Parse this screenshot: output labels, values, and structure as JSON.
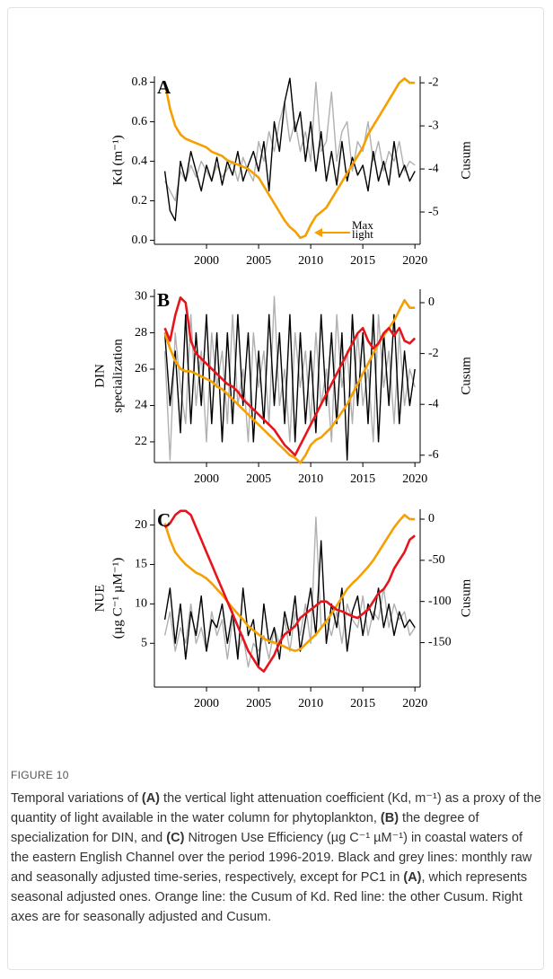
{
  "figure_label": "FIGURE 10",
  "caption": [
    {
      "text": "Temporal variations of "
    },
    {
      "text": "(A)",
      "bold": true
    },
    {
      "text": " the vertical light attenuation coefficient (Kd, m⁻¹) as a proxy of the quantity of light available in the water column for phytoplankton, "
    },
    {
      "text": "(B)",
      "bold": true
    },
    {
      "text": " the degree of specialization for DIN, and "
    },
    {
      "text": "(C)",
      "bold": true
    },
    {
      "text": " Nitrogen Use Efficiency (µg C⁻¹ µM⁻¹) in coastal waters of the eastern English Channel over the period 1996-2019. Black and grey lines: monthly raw and seasonally adjusted time-series, respectively, except for PC1 in "
    },
    {
      "text": "(A)",
      "bold": true
    },
    {
      "text": ", which represents seasonal adjusted ones. Orange line: the Cusum of Kd. Red line: the other Cusum. Right axes are for seasonally adjusted and Cusum."
    }
  ],
  "chart_data": [
    {
      "type": "line",
      "label": "A",
      "ylabel": [
        "Kd (m⁻¹)"
      ],
      "y2label": "Cusum",
      "annotation": [
        "Max",
        "light"
      ],
      "x": [
        1996,
        1996.5,
        1997,
        1997.5,
        1998,
        1998.5,
        1999,
        1999.5,
        2000,
        2000.5,
        2001,
        2001.5,
        2002,
        2002.5,
        2003,
        2003.5,
        2004,
        2004.5,
        2005,
        2005.5,
        2006,
        2006.5,
        2007,
        2007.5,
        2008,
        2008.5,
        2009,
        2009.5,
        2010,
        2010.5,
        2011,
        2011.5,
        2012,
        2012.5,
        2013,
        2013.5,
        2014,
        2014.5,
        2015,
        2015.5,
        2016,
        2016.5,
        2017,
        2017.5,
        2018,
        2018.5,
        2019,
        2019.5,
        2020
      ],
      "xlim": [
        1995,
        2020.5
      ],
      "xticks": [
        2000,
        2005,
        2010,
        2015,
        2020
      ],
      "ylim": [
        -0.02,
        0.83
      ],
      "yticks": [
        {
          "value": 0,
          "label": "0.0"
        },
        0.2,
        0.4,
        0.6,
        0.8
      ],
      "y2lim": [
        -5.75,
        -1.85
      ],
      "y2ticks": [
        -2,
        -3,
        -4,
        -5
      ],
      "series": [
        {
          "color": "#b0b0b0",
          "values": [
            0.3,
            0.25,
            0.2,
            0.35,
            0.3,
            0.38,
            0.32,
            0.4,
            0.35,
            0.3,
            0.38,
            0.32,
            0.36,
            0.4,
            0.3,
            0.42,
            0.35,
            0.3,
            0.5,
            0.4,
            0.55,
            0.45,
            0.6,
            0.7,
            0.5,
            0.6,
            0.45,
            0.55,
            0.4,
            0.8,
            0.45,
            0.5,
            0.75,
            0.4,
            0.55,
            0.6,
            0.35,
            0.5,
            0.45,
            0.6,
            0.4,
            0.5,
            0.35,
            0.45,
            0.4,
            0.5,
            0.35,
            0.4,
            0.38
          ]
        },
        {
          "color": "#000000",
          "values": [
            0.35,
            0.15,
            0.1,
            0.4,
            0.3,
            0.45,
            0.35,
            0.25,
            0.38,
            0.3,
            0.42,
            0.28,
            0.4,
            0.33,
            0.45,
            0.3,
            0.38,
            0.45,
            0.35,
            0.5,
            0.25,
            0.6,
            0.45,
            0.7,
            0.82,
            0.55,
            0.65,
            0.4,
            0.6,
            0.35,
            0.55,
            0.3,
            0.45,
            0.28,
            0.5,
            0.3,
            0.42,
            0.33,
            0.38,
            0.25,
            0.45,
            0.3,
            0.4,
            0.28,
            0.5,
            0.32,
            0.38,
            0.3,
            0.35
          ]
        },
        {
          "color": "#f5a000",
          "axis": "y2",
          "values": [
            -2.0,
            -2.6,
            -3.0,
            -3.2,
            -3.3,
            -3.35,
            -3.4,
            -3.45,
            -3.5,
            -3.6,
            -3.65,
            -3.7,
            -3.8,
            -3.85,
            -3.9,
            -3.95,
            -4.0,
            -4.1,
            -4.2,
            -4.4,
            -4.6,
            -4.8,
            -5.0,
            -5.2,
            -5.35,
            -5.45,
            -5.6,
            -5.55,
            -5.3,
            -5.1,
            -5.0,
            -4.9,
            -4.7,
            -4.5,
            -4.3,
            -4.1,
            -3.9,
            -3.7,
            -3.5,
            -3.2,
            -3.0,
            -2.8,
            -2.6,
            -2.4,
            -2.2,
            -2.0,
            -1.9,
            -2.0,
            -2.0
          ]
        }
      ]
    },
    {
      "type": "line",
      "label": "B",
      "ylabel": [
        "DIN",
        "specialization"
      ],
      "y2label": "Cusum",
      "x": [
        1996,
        1996.5,
        1997,
        1997.5,
        1998,
        1998.5,
        1999,
        1999.5,
        2000,
        2000.5,
        2001,
        2001.5,
        2002,
        2002.5,
        2003,
        2003.5,
        2004,
        2004.5,
        2005,
        2005.5,
        2006,
        2006.5,
        2007,
        2007.5,
        2008,
        2008.5,
        2009,
        2009.5,
        2010,
        2010.5,
        2011,
        2011.5,
        2012,
        2012.5,
        2013,
        2013.5,
        2014,
        2014.5,
        2015,
        2015.5,
        2016,
        2016.5,
        2017,
        2017.5,
        2018,
        2018.5,
        2019,
        2019.5,
        2020
      ],
      "xlim": [
        1995,
        2020.5
      ],
      "xticks": [
        2000,
        2005,
        2010,
        2015,
        2020
      ],
      "ylim": [
        20.86,
        30.4
      ],
      "yticks": [
        22,
        24,
        26,
        28,
        30
      ],
      "y2lim": [
        -6.29,
        0.53
      ],
      "y2ticks": [
        0,
        -2,
        -4,
        -6
      ],
      "series": [
        {
          "color": "#b0b0b0",
          "values": [
            27,
            21,
            28,
            25,
            23,
            29,
            24,
            27,
            22,
            28,
            25,
            27,
            23,
            29,
            24,
            26,
            22,
            28,
            25,
            27,
            23,
            30,
            24,
            26,
            22,
            28,
            25,
            27,
            23,
            28,
            24,
            26,
            22,
            29,
            25,
            27,
            23,
            28,
            24,
            26,
            22,
            29,
            25,
            27,
            23,
            28,
            24,
            26,
            25
          ]
        },
        {
          "color": "#000000",
          "values": [
            28,
            24,
            27,
            22.5,
            29,
            23,
            28,
            24,
            29,
            23,
            28,
            22,
            28,
            23,
            29,
            24,
            28,
            22,
            27,
            23,
            29,
            24,
            28,
            23,
            29,
            22,
            28,
            23,
            27,
            22.5,
            29,
            24,
            28,
            23,
            28,
            21,
            29,
            24,
            28,
            23,
            29,
            22,
            28,
            24,
            29,
            23,
            27,
            24,
            26
          ]
        },
        {
          "color": "#f5a000",
          "axis": "y2",
          "values": [
            -1.2,
            -1.8,
            -2.3,
            -2.6,
            -2.7,
            -2.7,
            -2.8,
            -2.9,
            -3.0,
            -3.1,
            -3.3,
            -3.4,
            -3.6,
            -3.8,
            -4.0,
            -4.2,
            -4.4,
            -4.6,
            -4.8,
            -5.0,
            -5.2,
            -5.4,
            -5.6,
            -5.8,
            -6.0,
            -6.1,
            -6.3,
            -6.0,
            -5.6,
            -5.4,
            -5.3,
            -5.1,
            -4.9,
            -4.6,
            -4.3,
            -4.0,
            -3.6,
            -3.2,
            -2.8,
            -2.4,
            -2.0,
            -1.6,
            -1.3,
            -1.0,
            -0.7,
            -0.3,
            0.1,
            -0.2,
            -0.2
          ]
        },
        {
          "color": "#e8141c",
          "axis": "y2",
          "values": [
            -1.0,
            -1.5,
            -0.5,
            0.2,
            0.0,
            -1.5,
            -2.0,
            -2.2,
            -2.4,
            -2.6,
            -2.8,
            -3.0,
            -3.2,
            -3.3,
            -3.5,
            -3.8,
            -4.0,
            -4.2,
            -4.4,
            -4.6,
            -4.8,
            -5.0,
            -5.3,
            -5.6,
            -5.8,
            -6.0,
            -5.6,
            -5.2,
            -4.8,
            -4.4,
            -4.0,
            -3.6,
            -3.2,
            -2.8,
            -2.4,
            -2.0,
            -1.6,
            -1.2,
            -1.0,
            -1.5,
            -1.8,
            -1.6,
            -1.2,
            -1.0,
            -1.3,
            -1.0,
            -1.5,
            -1.6,
            -1.4
          ]
        }
      ]
    },
    {
      "type": "line",
      "label": "C",
      "ylabel": [
        "NUE",
        "(µg C⁻¹ µM⁻¹)"
      ],
      "y2label": "Cusum",
      "x": [
        1996,
        1996.5,
        1997,
        1997.5,
        1998,
        1998.5,
        1999,
        1999.5,
        2000,
        2000.5,
        2001,
        2001.5,
        2002,
        2002.5,
        2003,
        2003.5,
        2004,
        2004.5,
        2005,
        2005.5,
        2006,
        2006.5,
        2007,
        2007.5,
        2008,
        2008.5,
        2009,
        2009.5,
        2010,
        2010.5,
        2011,
        2011.5,
        2012,
        2012.5,
        2013,
        2013.5,
        2014,
        2014.5,
        2015,
        2015.5,
        2016,
        2016.5,
        2017,
        2017.5,
        2018,
        2018.5,
        2019,
        2019.5,
        2020
      ],
      "xlim": [
        1995,
        2020.5
      ],
      "xticks": [
        2000,
        2005,
        2010,
        2015,
        2020
      ],
      "ylim": [
        -0.55,
        22
      ],
      "yticks": [
        5,
        10,
        15,
        20
      ],
      "y2lim": [
        -204,
        12
      ],
      "y2ticks": [
        0,
        -50,
        -100,
        -150
      ],
      "series": [
        {
          "color": "#b0b0b0",
          "values": [
            6,
            9,
            4,
            7,
            5,
            10,
            5,
            7,
            4,
            9,
            6,
            8,
            3,
            8,
            4,
            6,
            2,
            5,
            4,
            6,
            3,
            7,
            5,
            8,
            4,
            9,
            6,
            10,
            5,
            21,
            7,
            8,
            6,
            9,
            5,
            10,
            8,
            7,
            11,
            6,
            9,
            8,
            12,
            7,
            10,
            8,
            9,
            6,
            7
          ]
        },
        {
          "color": "#000000",
          "values": [
            8,
            12,
            5,
            10,
            3,
            9,
            6,
            11,
            4,
            8,
            7,
            10,
            5,
            9,
            3,
            12,
            6,
            8,
            2,
            10,
            5,
            7,
            3,
            9,
            6,
            11,
            4,
            8,
            12,
            6,
            18,
            5,
            10,
            7,
            12,
            4,
            9,
            11,
            6,
            10,
            8,
            12,
            7,
            10,
            6,
            9,
            7,
            8,
            7
          ]
        },
        {
          "color": "#f5a000",
          "axis": "y2",
          "values": [
            -5,
            -25,
            -40,
            -48,
            -55,
            -60,
            -65,
            -68,
            -72,
            -78,
            -85,
            -92,
            -100,
            -108,
            -115,
            -122,
            -130,
            -135,
            -140,
            -145,
            -148,
            -150,
            -152,
            -155,
            -158,
            -160,
            -158,
            -152,
            -146,
            -140,
            -132,
            -124,
            -115,
            -105,
            -95,
            -85,
            -78,
            -72,
            -65,
            -58,
            -50,
            -40,
            -30,
            -20,
            -10,
            -2,
            5,
            0,
            0
          ]
        },
        {
          "color": "#e8141c",
          "axis": "y2",
          "values": [
            -10,
            -5,
            5,
            10,
            10,
            5,
            -10,
            -25,
            -40,
            -55,
            -70,
            -85,
            -100,
            -115,
            -130,
            -145,
            -160,
            -170,
            -180,
            -185,
            -175,
            -165,
            -150,
            -140,
            -135,
            -130,
            -120,
            -115,
            -110,
            -105,
            -100,
            -100,
            -105,
            -110,
            -112,
            -115,
            -118,
            -120,
            -115,
            -110,
            -100,
            -90,
            -85,
            -75,
            -60,
            -50,
            -40,
            -25,
            -20
          ]
        }
      ]
    }
  ]
}
